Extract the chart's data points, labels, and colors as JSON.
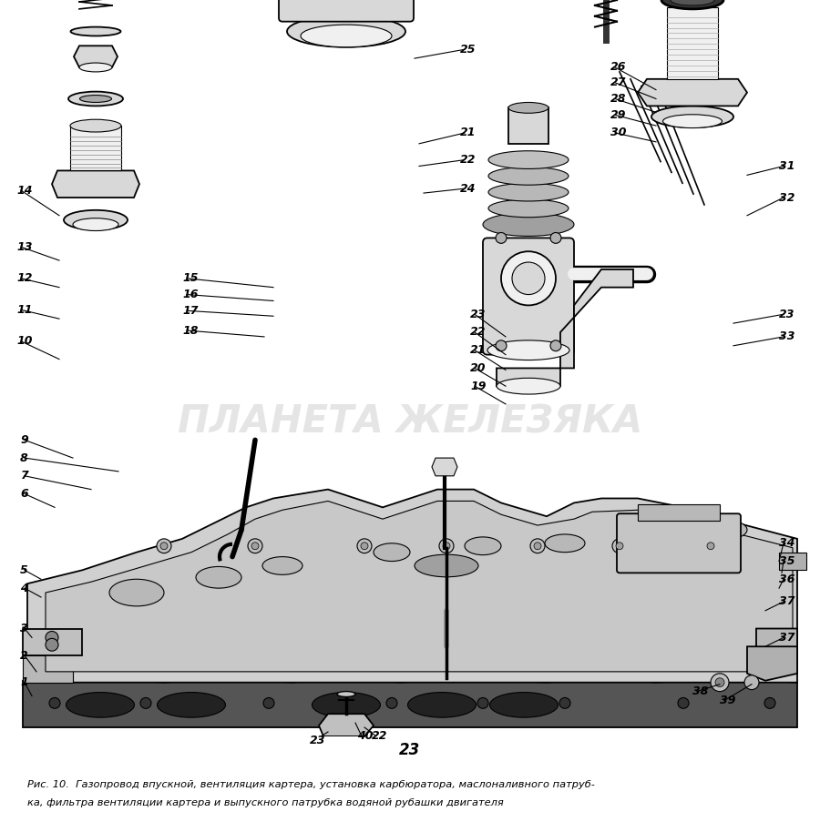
{
  "background_color": "#ffffff",
  "page_number": "23",
  "caption_line1": "Рис. 10.  Газопровод впускной, вентиляция картера, установка карбюратора, маслоналивного патруб-",
  "caption_line2": "ка, фильтра вентиляции картера и выпускного патрубка водяной рубашки двигателя",
  "watermark": "ПЛАНЕТА ЖЕЛЕЗЯКА",
  "watermark_color": "#cccccc",
  "watermark_alpha": 0.5,
  "fig_width": 9.0,
  "fig_height": 9.14,
  "dpi": 100
}
